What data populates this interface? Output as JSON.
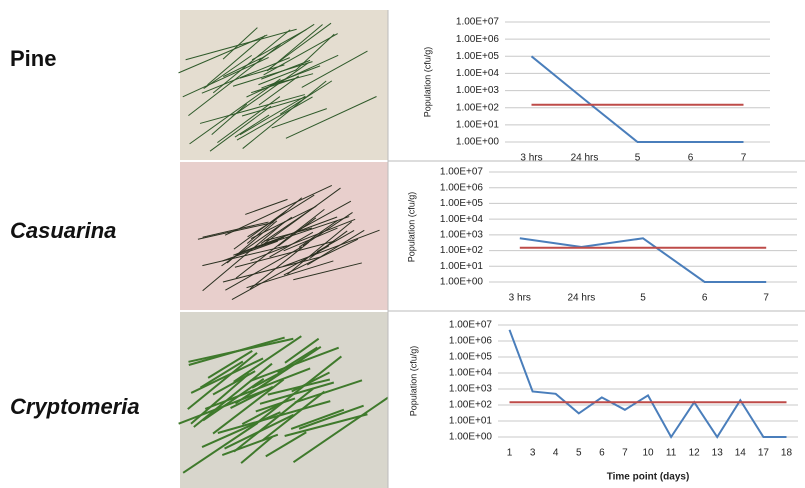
{
  "chart_data": [
    {
      "type": "line",
      "title": "Pine",
      "y_label": "Population (cfu/g)",
      "ylog": true,
      "grid": true,
      "categories": [
        "3 hrs",
        "24 hrs",
        "5",
        "6",
        "7"
      ],
      "series": [
        {
          "color": "#4a7ebb",
          "values": [
            100000,
            300,
            1,
            1,
            1
          ]
        },
        {
          "color": "#be4b48",
          "values": [
            150,
            150,
            150,
            150,
            150
          ]
        }
      ],
      "ylim": [
        1,
        10000000
      ],
      "yticks": [
        {
          "value": 1,
          "label": "1.00E+00"
        },
        {
          "value": 10,
          "label": "1.00E+01"
        },
        {
          "value": 100,
          "label": "1.00E+02"
        },
        {
          "value": 1000,
          "label": "1.00E+03"
        },
        {
          "value": 10000,
          "label": "1.00E+04"
        },
        {
          "value": 100000,
          "label": "1.00E+05"
        },
        {
          "value": 1000000,
          "label": "1.00E+06"
        },
        {
          "value": 10000000,
          "label": "1.00E+07"
        }
      ]
    },
    {
      "type": "line",
      "title": "Casuarina",
      "y_label": "Population (cfu/g)",
      "ylog": true,
      "grid": true,
      "categories": [
        "3 hrs",
        "24 hrs",
        "5",
        "6",
        "7"
      ],
      "series": [
        {
          "color": "#4a7ebb",
          "values": [
            600,
            170,
            600,
            1,
            1
          ]
        },
        {
          "color": "#be4b48",
          "values": [
            150,
            150,
            150,
            150,
            150
          ]
        }
      ],
      "ylim": [
        1,
        10000000
      ],
      "yticks": [
        {
          "value": 1,
          "label": "1.00E+00"
        },
        {
          "value": 10,
          "label": "1.00E+01"
        },
        {
          "value": 100,
          "label": "1.00E+02"
        },
        {
          "value": 1000,
          "label": "1.00E+03"
        },
        {
          "value": 10000,
          "label": "1.00E+04"
        },
        {
          "value": 100000,
          "label": "1.00E+05"
        },
        {
          "value": 1000000,
          "label": "1.00E+06"
        },
        {
          "value": 10000000,
          "label": "1.00E+07"
        }
      ]
    },
    {
      "type": "line",
      "title": "Cryptomeria",
      "y_label": "Population (cfu/g)",
      "x_label": "Time point (days)",
      "ylog": true,
      "grid": true,
      "categories": [
        "1",
        "3",
        "4",
        "5",
        "6",
        "7",
        "10",
        "11",
        "12",
        "13",
        "14",
        "17",
        "18"
      ],
      "series": [
        {
          "color": "#4a7ebb",
          "values": [
            5000000,
            700,
            500,
            30,
            300,
            50,
            400,
            1,
            150,
            1,
            200,
            1,
            1
          ]
        },
        {
          "color": "#be4b48",
          "values": [
            150,
            150,
            150,
            150,
            150,
            150,
            150,
            150,
            150,
            150,
            150,
            150,
            150
          ]
        }
      ],
      "ylim": [
        1,
        10000000
      ],
      "yticks": [
        {
          "value": 1,
          "label": "1.00E+00"
        },
        {
          "value": 10,
          "label": "1.00E+01"
        },
        {
          "value": 100,
          "label": "1.00E+02"
        },
        {
          "value": 1000,
          "label": "1.00E+03"
        },
        {
          "value": 10000,
          "label": "1.00E+04"
        },
        {
          "value": 100000,
          "label": "1.00E+05"
        },
        {
          "value": 1000000,
          "label": "1.00E+06"
        },
        {
          "value": 10000000,
          "label": "1.00E+07"
        }
      ]
    }
  ]
}
